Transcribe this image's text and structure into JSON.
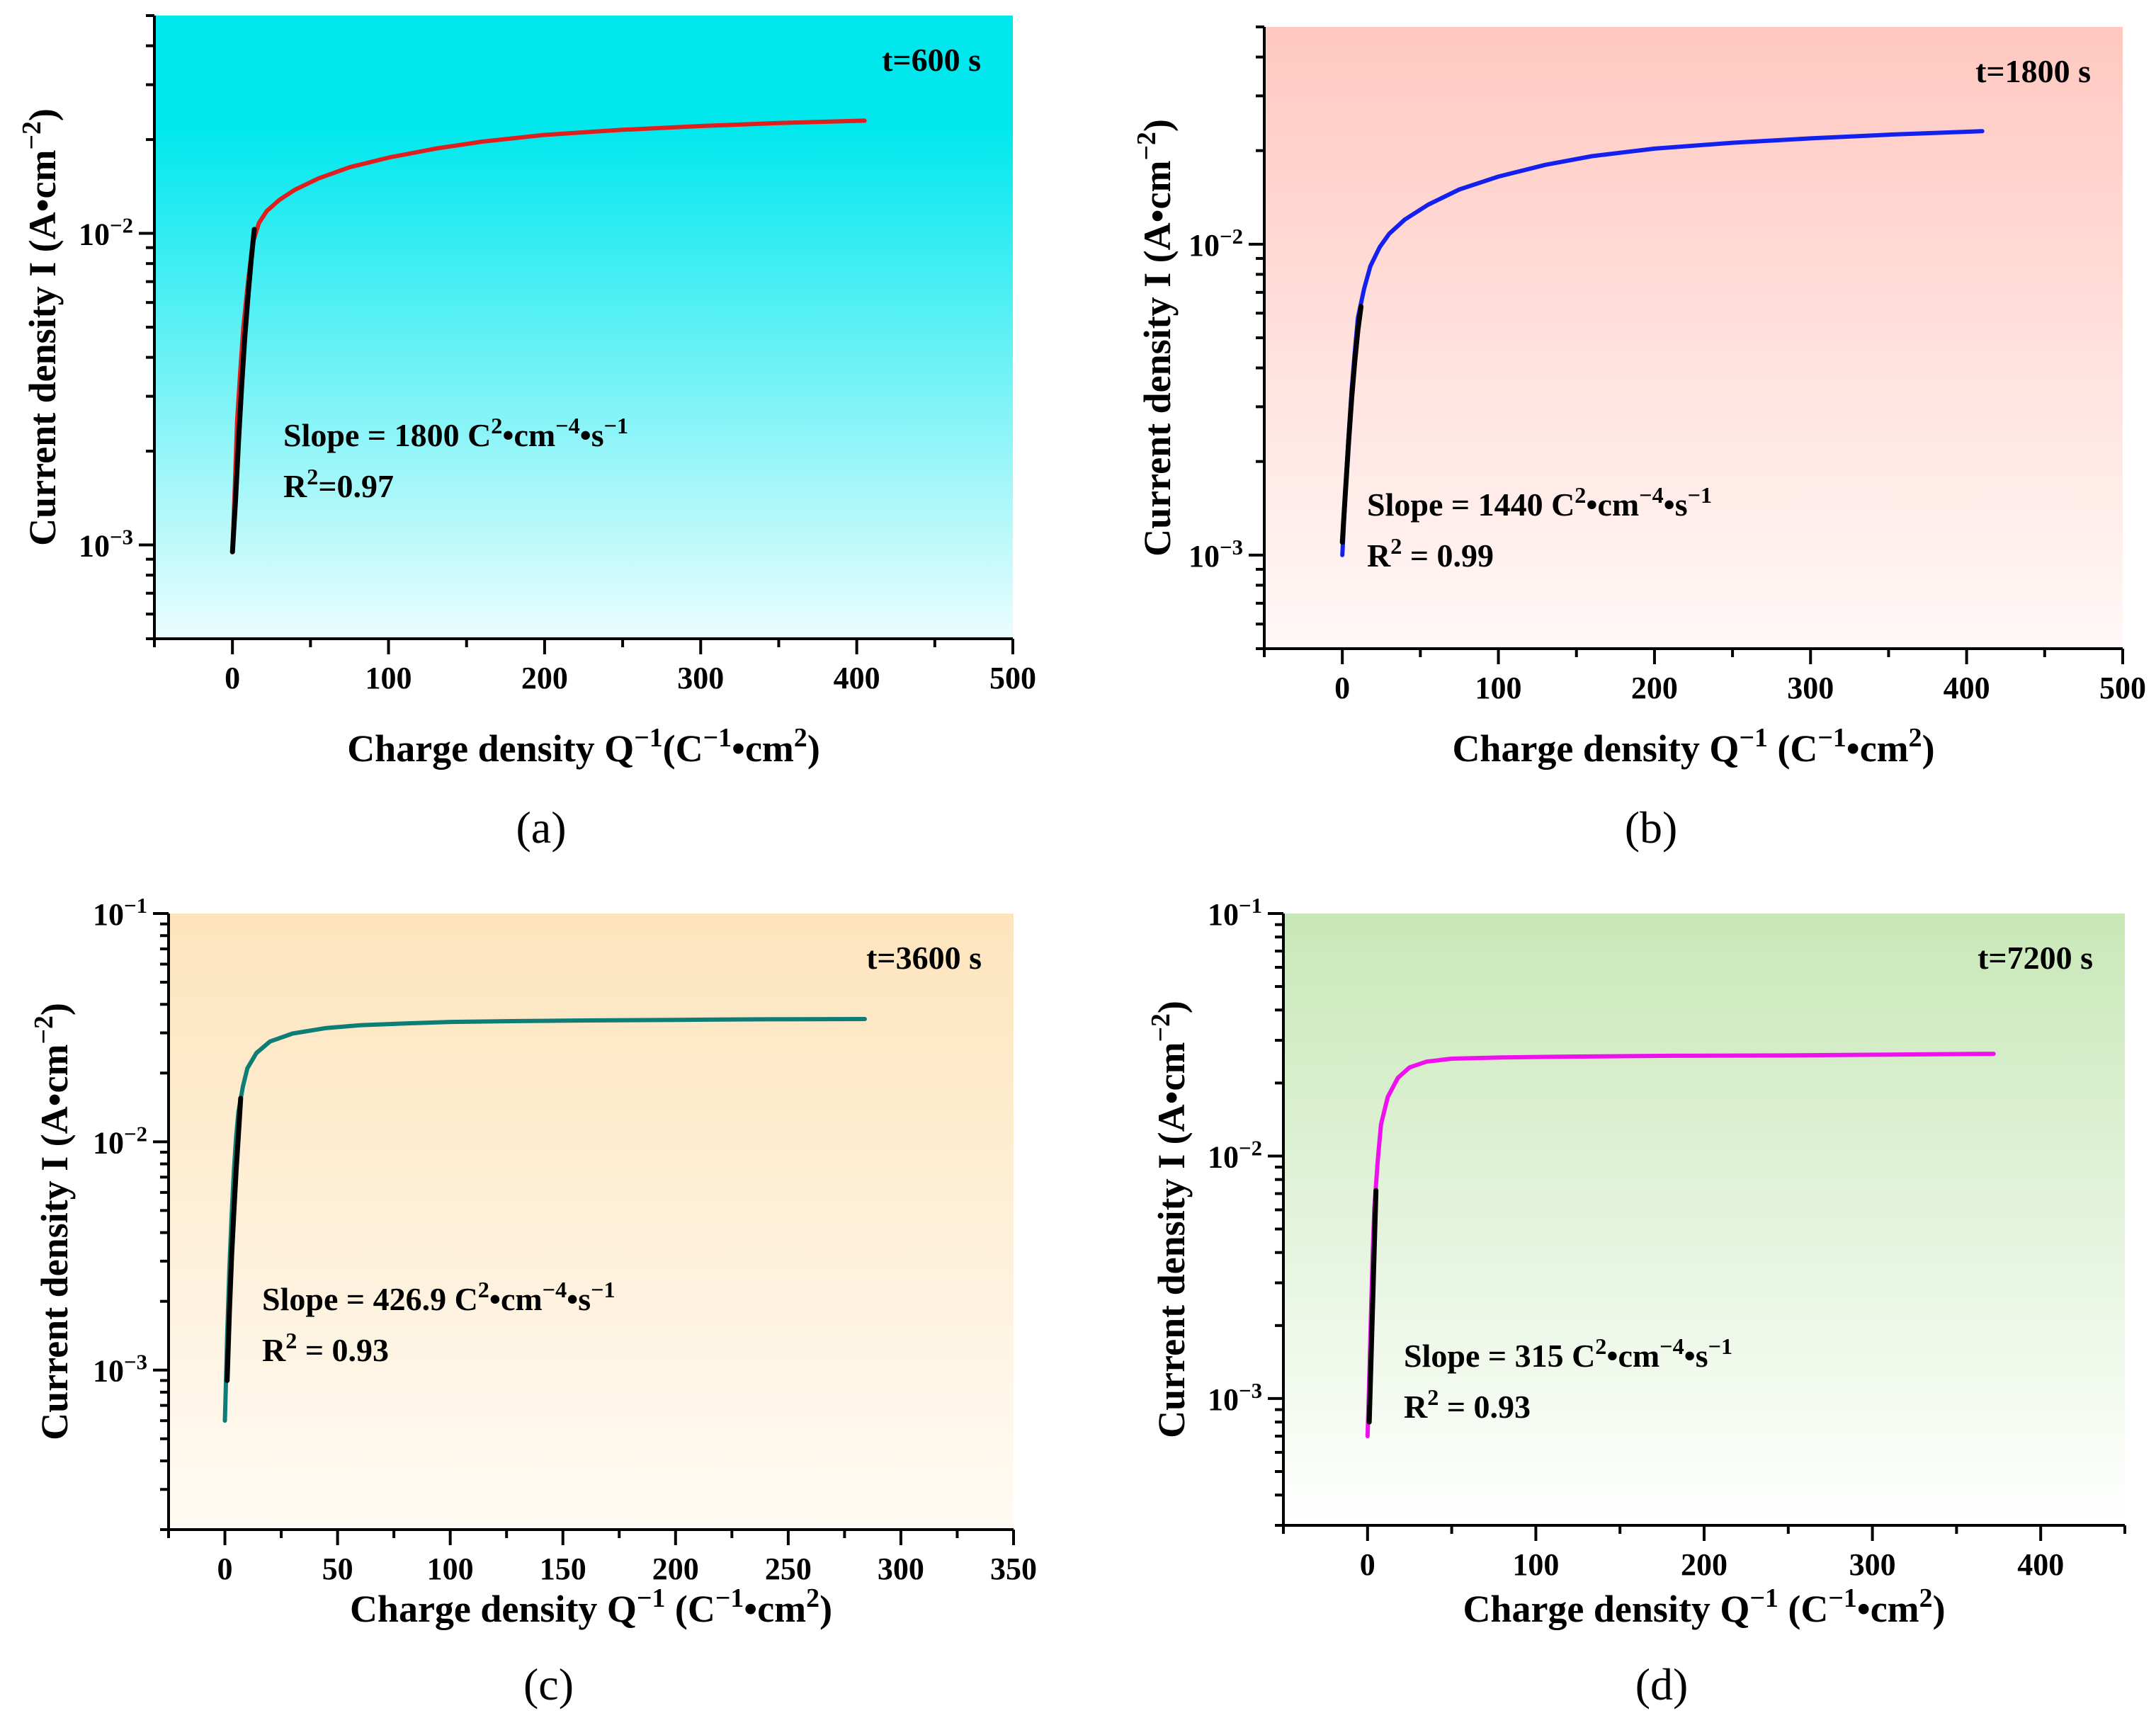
{
  "chart_data": [
    {
      "type": "line",
      "panel_label": "(a)",
      "xlabel": "Charge density Q⁻¹(C⁻¹•cm²)",
      "ylabel": "Current density I (A•cm⁻²)",
      "yscale": "log",
      "xlim": [
        -50,
        500
      ],
      "ylim": [
        0.0005,
        0.05
      ],
      "xticks": [
        "0",
        "100",
        "200",
        "300",
        "400",
        "500"
      ],
      "yticks": [
        {
          "value": 0.001,
          "base": "10",
          "exp": "−3"
        },
        {
          "value": 0.01,
          "base": "10",
          "exp": "−2"
        }
      ],
      "time_label": "t=600 s",
      "slope_text": "Slope = 1800 C²•cm⁻⁴•s⁻¹",
      "r2_text": "R²=0.97",
      "background": {
        "top": "#00e8ee",
        "bottom": "#ebfdfe"
      },
      "series": [
        {
          "name": "measured",
          "color": "#e01e1e",
          "x": [
            0,
            1,
            2,
            3,
            5,
            7,
            10,
            13,
            17,
            22,
            30,
            40,
            55,
            75,
            100,
            130,
            160,
            200,
            250,
            300,
            350,
            405
          ],
          "y": [
            0.00095,
            0.0013,
            0.0018,
            0.0025,
            0.0036,
            0.005,
            0.007,
            0.0093,
            0.0108,
            0.0118,
            0.0128,
            0.0138,
            0.015,
            0.0163,
            0.0175,
            0.0187,
            0.0197,
            0.0207,
            0.0215,
            0.0221,
            0.0226,
            0.023
          ]
        },
        {
          "name": "linear fit",
          "color": "#000000",
          "x": [
            0,
            2,
            4,
            6,
            8,
            10,
            12,
            14
          ],
          "y": [
            0.00095,
            0.0014,
            0.0022,
            0.0033,
            0.0047,
            0.0063,
            0.0082,
            0.0103
          ]
        }
      ]
    },
    {
      "type": "line",
      "panel_label": "(b)",
      "xlabel": "Charge density Q⁻¹ (C⁻¹•cm²)",
      "ylabel": "Current density I (A•cm⁻²)",
      "yscale": "log",
      "xlim": [
        -50,
        500
      ],
      "ylim": [
        0.0005,
        0.05
      ],
      "xticks": [
        "0",
        "100",
        "200",
        "300",
        "400",
        "500"
      ],
      "yticks": [
        {
          "value": 0.001,
          "base": "10",
          "exp": "−3"
        },
        {
          "value": 0.01,
          "base": "10",
          "exp": "−2"
        }
      ],
      "time_label": "t=1800 s",
      "slope_text": "Slope = 1440 C²•cm⁻⁴•s⁻¹",
      "r2_text": "R² = 0.99",
      "background": {
        "top": "#ffc8c0",
        "bottom": "#fff8f7"
      },
      "series": [
        {
          "name": "measured",
          "color": "#1420f0",
          "x": [
            0,
            2,
            4,
            6,
            8,
            10,
            14,
            18,
            24,
            30,
            40,
            55,
            75,
            100,
            130,
            160,
            200,
            250,
            300,
            350,
            410
          ],
          "y": [
            0.001,
            0.0016,
            0.0024,
            0.0034,
            0.0045,
            0.0058,
            0.0072,
            0.0085,
            0.0098,
            0.0108,
            0.012,
            0.0134,
            0.015,
            0.0165,
            0.018,
            0.0192,
            0.0203,
            0.0212,
            0.0219,
            0.0225,
            0.0231
          ]
        },
        {
          "name": "linear fit",
          "color": "#000000",
          "x": [
            0,
            2,
            4,
            6,
            8,
            10,
            12
          ],
          "y": [
            0.0011,
            0.0016,
            0.0023,
            0.0032,
            0.0042,
            0.0053,
            0.0063
          ]
        }
      ]
    },
    {
      "type": "line",
      "panel_label": "(c)",
      "xlabel": "Charge density Q⁻¹ (C⁻¹•cm²)",
      "ylabel": "Current density I (A•cm⁻²)",
      "yscale": "log",
      "xlim": [
        -25,
        350
      ],
      "ylim": [
        0.0002,
        0.1
      ],
      "xticks": [
        "0",
        "50",
        "100",
        "150",
        "200",
        "250",
        "300",
        "350"
      ],
      "yticks": [
        {
          "value": 0.001,
          "base": "10",
          "exp": "−3"
        },
        {
          "value": 0.01,
          "base": "10",
          "exp": "−2"
        },
        {
          "value": 0.1,
          "base": "10",
          "exp": "−1"
        }
      ],
      "time_label": "t=3600 s",
      "slope_text": "Slope = 426.9 C²•cm⁻⁴•s⁻¹",
      "r2_text": "R² = 0.93",
      "background": {
        "top": "#fde4bc",
        "bottom": "#fffbf4"
      },
      "series": [
        {
          "name": "measured",
          "color": "#0d7d78",
          "x": [
            0,
            0.5,
            1,
            2,
            3,
            4,
            5,
            6,
            8,
            10,
            14,
            20,
            30,
            45,
            60,
            80,
            100,
            130,
            160,
            200,
            240,
            284
          ],
          "y": [
            0.0006,
            0.0009,
            0.0014,
            0.0028,
            0.0048,
            0.0075,
            0.0105,
            0.0135,
            0.0175,
            0.021,
            0.0245,
            0.0275,
            0.0298,
            0.0315,
            0.0324,
            0.033,
            0.0335,
            0.0338,
            0.034,
            0.0342,
            0.0344,
            0.0345
          ]
        },
        {
          "name": "linear fit",
          "color": "#000000",
          "x": [
            1,
            2,
            3,
            4,
            5,
            6,
            7
          ],
          "y": [
            0.0009,
            0.0018,
            0.0032,
            0.005,
            0.0075,
            0.0107,
            0.0155
          ]
        }
      ]
    },
    {
      "type": "line",
      "panel_label": "(d)",
      "xlabel": "Charge density Q⁻¹ (C⁻¹•cm²)",
      "ylabel": "Current density I (A•cm⁻²)",
      "yscale": "log",
      "xlim": [
        -50,
        450
      ],
      "ylim": [
        0.0003,
        0.1
      ],
      "xticks": [
        "0",
        "100",
        "200",
        "300",
        "400"
      ],
      "yticks": [
        {
          "value": 0.001,
          "base": "10",
          "exp": "−3"
        },
        {
          "value": 0.01,
          "base": "10",
          "exp": "−2"
        },
        {
          "value": 0.1,
          "base": "10",
          "exp": "−1"
        }
      ],
      "time_label": "t=7200 s",
      "slope_text": "Slope = 315 C²•cm⁻⁴•s⁻¹",
      "r2_text": "R² = 0.93",
      "background": {
        "top": "#c8e8b8",
        "bottom": "#ffffff"
      },
      "series": [
        {
          "name": "measured",
          "color": "#ee10ee",
          "x": [
            0,
            0.5,
            1,
            2,
            3,
            4,
            6,
            8,
            12,
            18,
            25,
            35,
            50,
            80,
            120,
            180,
            250,
            310,
            372
          ],
          "y": [
            0.0007,
            0.0009,
            0.0012,
            0.0022,
            0.0038,
            0.006,
            0.0095,
            0.0135,
            0.0175,
            0.021,
            0.0232,
            0.0245,
            0.0252,
            0.0255,
            0.0257,
            0.0259,
            0.026,
            0.0262,
            0.0264
          ]
        },
        {
          "name": "linear fit",
          "color": "#000000",
          "x": [
            1,
            2,
            3,
            4,
            5
          ],
          "y": [
            0.0008,
            0.0014,
            0.0024,
            0.0042,
            0.0072
          ]
        }
      ]
    }
  ]
}
